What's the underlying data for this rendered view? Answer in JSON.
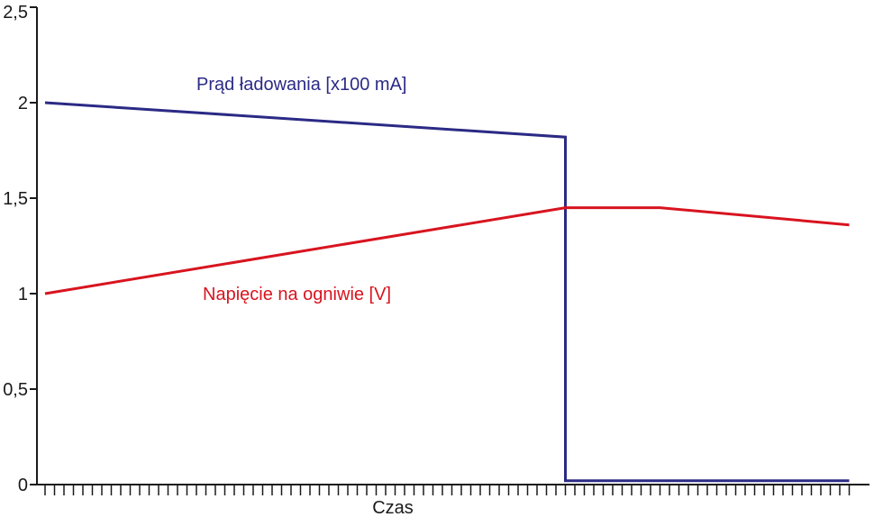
{
  "chart_data": {
    "type": "line",
    "title": "",
    "xlabel": "Czas",
    "ylabel": "",
    "ylim": [
      0,
      2.5
    ],
    "yticks": [
      {
        "value": 0,
        "label": "0"
      },
      {
        "value": 0.5,
        "label": "0,5"
      },
      {
        "value": 1,
        "label": "1"
      },
      {
        "value": 1.5,
        "label": "1,5"
      },
      {
        "value": 2,
        "label": "2"
      },
      {
        "value": 2.5,
        "label": "2,5"
      }
    ],
    "x_minor_tick_count": 85,
    "grid": false,
    "series": [
      {
        "name": "Prąd ładowania [x100 mA]",
        "color": "#2b2a85",
        "x": [
          0,
          55,
          55,
          85
        ],
        "y": [
          2.0,
          1.82,
          0.02,
          0.02
        ]
      },
      {
        "name": "Napięcie na ogniwie [V]",
        "color": "#d8141f",
        "x": [
          0,
          55,
          65,
          85
        ],
        "y": [
          1.0,
          1.45,
          1.45,
          1.36
        ]
      }
    ]
  }
}
